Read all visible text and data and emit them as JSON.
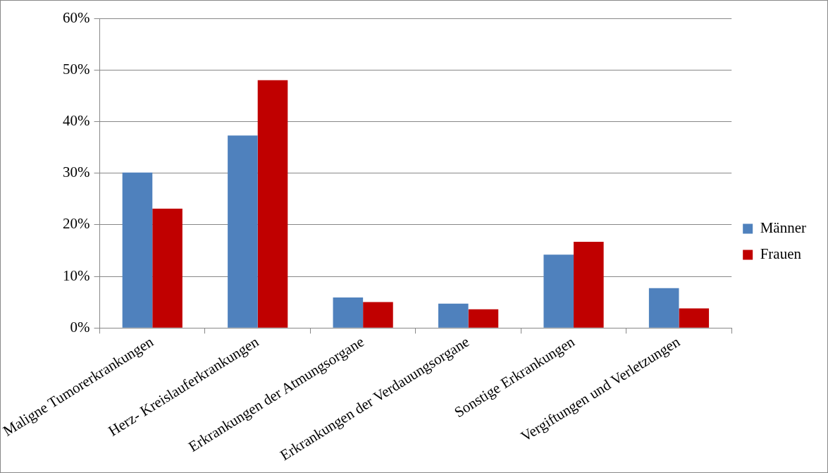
{
  "chart_data": {
    "type": "bar",
    "categories": [
      "Maligne Tumorerkrankungen",
      "Herz- Kreislauferkrankungen",
      "Erkrankungen der Atmungsorgane",
      "Erkrankungen der Verdauungsorgane",
      "Sonstige Erkrankungen",
      "Vergiftungen und Verletzungen"
    ],
    "series": [
      {
        "name": "Männer",
        "color": "#4f81bd",
        "values": [
          30.1,
          37.3,
          5.9,
          4.7,
          14.2,
          7.7
        ]
      },
      {
        "name": "Frauen",
        "color": "#c00000",
        "values": [
          23.1,
          48.0,
          5.0,
          3.6,
          16.7,
          3.8
        ]
      }
    ],
    "ylim": [
      0,
      60
    ],
    "yticks": [
      {
        "value": 0,
        "label": "0%"
      },
      {
        "value": 10,
        "label": "10%"
      },
      {
        "value": 20,
        "label": "20%"
      },
      {
        "value": 30,
        "label": "30%"
      },
      {
        "value": 40,
        "label": "40%"
      },
      {
        "value": 50,
        "label": "50%"
      },
      {
        "value": 60,
        "label": "60%"
      }
    ],
    "grid": "y",
    "legend": "right"
  }
}
